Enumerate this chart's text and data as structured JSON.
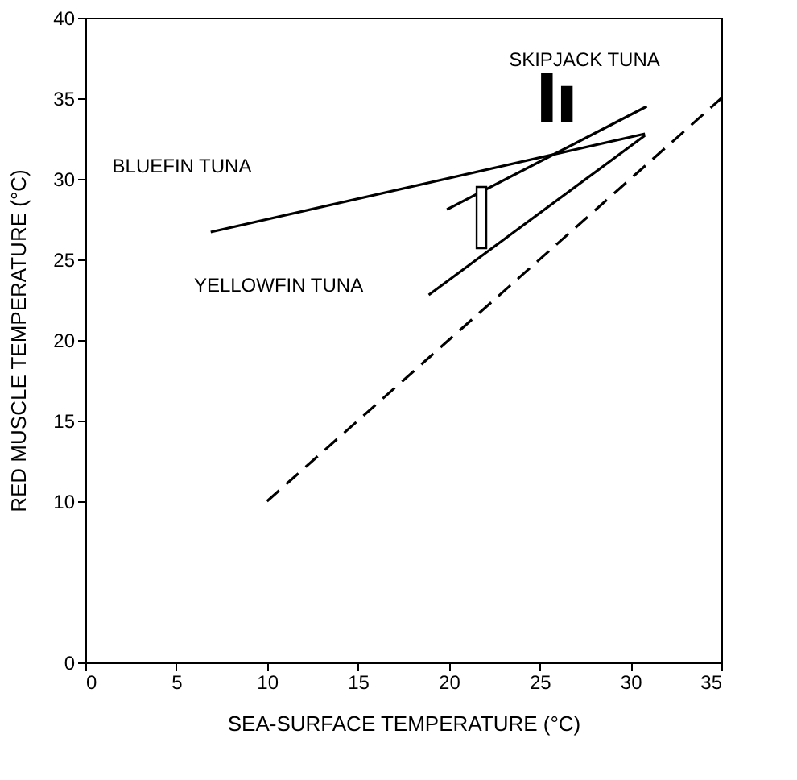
{
  "chart_data": {
    "type": "line",
    "xlabel": "SEA-SURFACE TEMPERATURE (°C)",
    "ylabel": "RED MUSCLE TEMPERATURE (°C)",
    "xlim": [
      0,
      35
    ],
    "ylim": [
      0,
      40
    ],
    "xticks": [
      0,
      5,
      10,
      15,
      20,
      25,
      30,
      35
    ],
    "yticks": [
      0,
      10,
      15,
      20,
      25,
      30,
      35,
      40
    ],
    "marker": "none",
    "series": [
      {
        "color": "#000000",
        "x": [
          6.9,
          30.8
        ],
        "values": [
          26.7,
          32.8
        ]
      },
      {
        "color": "#000000",
        "x": [
          18.9,
          30.8
        ],
        "values": [
          22.8,
          32.7
        ]
      },
      {
        "color": "#000000",
        "x": [
          19.9,
          30.9
        ],
        "values": [
          28.1,
          34.5
        ]
      },
      {
        "color": "#000000",
        "line_style": "dashed",
        "x": [
          10,
          35
        ],
        "values": [
          10,
          35
        ]
      },
      {
        "type": "bar",
        "color": "#000000",
        "colors": [
          "#ffffff",
          "#000000",
          "#000000"
        ],
        "x": [
          21.8,
          25.4,
          26.5
        ],
        "base": [
          25.7,
          33.6,
          33.6
        ],
        "values": [
          3.8,
          2.9,
          2.1
        ]
      }
    ],
    "annotations": [
      "SKIPJACK TUNA",
      "BLUEFIN TUNA",
      "YELLOWFIN TUNA"
    ]
  }
}
